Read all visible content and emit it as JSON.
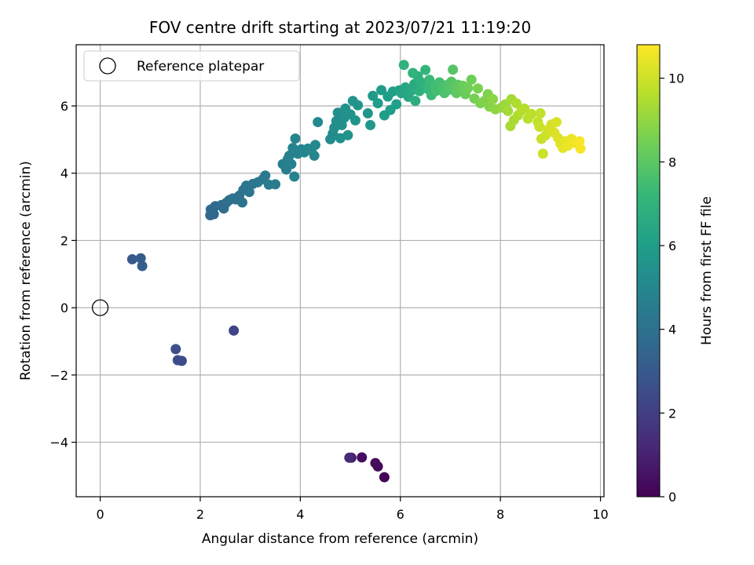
{
  "chart_data": {
    "type": "scatter",
    "title": "FOV centre drift starting at 2023/07/21 11:19:20",
    "xlabel": "Angular distance from reference (arcmin)",
    "ylabel": "Rotation from reference (arcmin)",
    "xlim": [
      -0.48,
      10.07
    ],
    "ylim": [
      -5.62,
      7.82
    ],
    "xticks": [
      0,
      2,
      4,
      6,
      8,
      10
    ],
    "yticks": [
      -4,
      -2,
      0,
      2,
      4,
      6
    ],
    "grid": true,
    "legend": {
      "position": "top-left",
      "entries": [
        "Reference platepar"
      ]
    },
    "reference_point": {
      "x": 0,
      "y": 0
    },
    "colorbar": {
      "label": "Hours from first FF file",
      "colormap": "viridis",
      "range": [
        0,
        10.8
      ],
      "ticks": [
        0,
        2,
        4,
        6,
        8,
        10
      ]
    },
    "colors": {
      "viridis": [
        "#440154",
        "#482878",
        "#3e4a89",
        "#31688e",
        "#26828e",
        "#1f9e89",
        "#35b779",
        "#6ece58",
        "#b5de2b",
        "#fde725"
      ]
    },
    "points": [
      [
        5.68,
        -5.04,
        0.1
      ],
      [
        5.55,
        -4.72,
        0.2
      ],
      [
        5.5,
        -4.62,
        0.3
      ],
      [
        5.23,
        -4.45,
        0.4
      ],
      [
        5.02,
        -4.46,
        0.6
      ],
      [
        4.98,
        -4.46,
        1.3
      ],
      [
        2.67,
        -0.68,
        2.2
      ],
      [
        1.63,
        -1.58,
        2.4
      ],
      [
        1.55,
        -1.56,
        2.5
      ],
      [
        1.51,
        -1.23,
        2.6
      ],
      [
        0.64,
        1.44,
        3.0
      ],
      [
        0.81,
        1.47,
        3.1
      ],
      [
        0.84,
        1.24,
        3.2
      ],
      [
        2.2,
        2.75,
        3.6
      ],
      [
        2.27,
        2.78,
        3.6
      ],
      [
        2.21,
        2.92,
        3.7
      ],
      [
        2.3,
        3.02,
        3.7
      ],
      [
        2.42,
        3.05,
        3.8
      ],
      [
        2.47,
        2.95,
        3.8
      ],
      [
        2.52,
        3.12,
        3.9
      ],
      [
        2.58,
        3.2,
        3.9
      ],
      [
        2.65,
        3.25,
        4.0
      ],
      [
        2.71,
        3.22,
        4.0
      ],
      [
        2.78,
        3.33,
        4.0
      ],
      [
        2.84,
        3.13,
        4.1
      ],
      [
        2.86,
        3.5,
        4.1
      ],
      [
        2.92,
        3.63,
        4.2
      ],
      [
        2.98,
        3.44,
        4.2
      ],
      [
        3.05,
        3.68,
        4.3
      ],
      [
        3.15,
        3.73,
        4.3
      ],
      [
        3.25,
        3.82,
        4.4
      ],
      [
        3.3,
        3.93,
        4.4
      ],
      [
        3.37,
        3.66,
        4.5
      ],
      [
        3.5,
        3.67,
        4.5
      ],
      [
        3.65,
        4.27,
        4.6
      ],
      [
        3.72,
        4.11,
        4.6
      ],
      [
        3.75,
        4.42,
        4.7
      ],
      [
        3.78,
        4.52,
        4.7
      ],
      [
        3.82,
        4.27,
        4.7
      ],
      [
        3.85,
        4.75,
        4.8
      ],
      [
        3.88,
        3.9,
        4.8
      ],
      [
        3.95,
        4.58,
        4.8
      ],
      [
        3.9,
        5.03,
        4.9
      ],
      [
        4.02,
        4.71,
        4.9
      ],
      [
        4.08,
        4.62,
        4.9
      ],
      [
        4.15,
        4.73,
        5.0
      ],
      [
        4.22,
        4.68,
        5.0
      ],
      [
        4.28,
        4.52,
        5.0
      ],
      [
        4.3,
        4.84,
        5.1
      ],
      [
        4.35,
        5.52,
        5.1
      ],
      [
        4.6,
        5.01,
        5.2
      ],
      [
        4.65,
        5.18,
        5.2
      ],
      [
        4.68,
        5.35,
        5.3
      ],
      [
        4.72,
        5.55,
        5.3
      ],
      [
        4.75,
        5.8,
        5.3
      ],
      [
        4.8,
        5.04,
        5.4
      ],
      [
        4.83,
        5.43,
        5.4
      ],
      [
        4.88,
        5.65,
        5.4
      ],
      [
        4.9,
        5.92,
        5.5
      ],
      [
        4.95,
        5.13,
        5.5
      ],
      [
        5.0,
        5.75,
        5.5
      ],
      [
        5.05,
        6.15,
        5.6
      ],
      [
        5.1,
        5.57,
        5.6
      ],
      [
        5.15,
        6.02,
        5.6
      ],
      [
        5.35,
        5.78,
        5.7
      ],
      [
        5.4,
        5.43,
        5.8
      ],
      [
        5.45,
        6.3,
        5.8
      ],
      [
        5.55,
        6.08,
        5.9
      ],
      [
        5.62,
        6.47,
        5.9
      ],
      [
        5.68,
        5.72,
        6.0
      ],
      [
        5.75,
        6.28,
        6.0
      ],
      [
        5.8,
        5.88,
        6.0
      ],
      [
        5.85,
        6.43,
        6.1
      ],
      [
        5.92,
        6.05,
        6.1
      ],
      [
        5.97,
        6.46,
        6.2
      ],
      [
        6.02,
        6.38,
        6.3
      ],
      [
        6.1,
        6.55,
        6.4
      ],
      [
        6.16,
        6.27,
        6.5
      ],
      [
        6.22,
        6.45,
        6.6
      ],
      [
        6.28,
        6.65,
        6.6
      ],
      [
        6.3,
        6.15,
        6.7
      ],
      [
        6.35,
        6.88,
        6.8
      ],
      [
        6.38,
        6.44,
        6.8
      ],
      [
        6.42,
        6.7,
        6.9
      ],
      [
        6.07,
        7.22,
        6.9
      ],
      [
        6.25,
        6.98,
        7.0
      ],
      [
        6.5,
        7.07,
        7.1
      ],
      [
        6.55,
        6.5,
        7.2
      ],
      [
        6.58,
        6.78,
        7.3
      ],
      [
        6.62,
        6.32,
        7.3
      ],
      [
        6.68,
        6.6,
        7.4
      ],
      [
        6.72,
        6.45,
        7.5
      ],
      [
        6.78,
        6.7,
        7.5
      ],
      [
        6.83,
        6.55,
        7.6
      ],
      [
        6.88,
        6.38,
        7.7
      ],
      [
        6.93,
        6.62,
        7.7
      ],
      [
        6.97,
        6.48,
        7.8
      ],
      [
        7.02,
        6.72,
        7.9
      ],
      [
        7.05,
        7.08,
        7.9
      ],
      [
        7.08,
        6.55,
        8.0
      ],
      [
        7.12,
        6.38,
        8.1
      ],
      [
        7.15,
        6.63,
        8.1
      ],
      [
        7.2,
        6.48,
        8.2
      ],
      [
        7.25,
        6.6,
        8.3
      ],
      [
        7.3,
        6.35,
        8.3
      ],
      [
        7.35,
        6.53,
        8.4
      ],
      [
        7.42,
        6.78,
        8.4
      ],
      [
        7.48,
        6.22,
        8.5
      ],
      [
        7.55,
        6.52,
        8.6
      ],
      [
        7.6,
        6.08,
        8.6
      ],
      [
        7.68,
        6.15,
        8.7
      ],
      [
        7.75,
        6.35,
        8.7
      ],
      [
        7.78,
        5.98,
        8.8
      ],
      [
        7.85,
        6.2,
        8.9
      ],
      [
        7.9,
        5.9,
        8.9
      ],
      [
        8.02,
        5.95,
        9.1
      ],
      [
        8.1,
        6.05,
        9.2
      ],
      [
        8.15,
        5.85,
        9.3
      ],
      [
        8.22,
        6.2,
        9.3
      ],
      [
        8.2,
        5.4,
        9.4
      ],
      [
        8.27,
        5.58,
        9.4
      ],
      [
        8.32,
        6.08,
        9.5
      ],
      [
        8.35,
        5.72,
        9.5
      ],
      [
        8.42,
        5.86,
        9.6
      ],
      [
        8.48,
        5.92,
        9.6
      ],
      [
        8.55,
        5.62,
        9.7
      ],
      [
        8.62,
        5.76,
        9.7
      ],
      [
        8.75,
        5.52,
        9.8
      ],
      [
        8.8,
        5.78,
        9.8
      ],
      [
        8.78,
        5.38,
        9.9
      ],
      [
        8.82,
        5.02,
        9.9
      ],
      [
        8.85,
        4.58,
        10.0
      ],
      [
        8.9,
        5.12,
        10.0
      ],
      [
        8.95,
        5.3,
        10.1
      ],
      [
        9.02,
        5.45,
        10.1
      ],
      [
        9.08,
        5.2,
        10.2
      ],
      [
        9.12,
        5.52,
        10.2
      ],
      [
        9.15,
        5.05,
        10.3
      ],
      [
        9.2,
        4.88,
        10.3
      ],
      [
        9.25,
        4.75,
        10.4
      ],
      [
        9.3,
        4.95,
        10.4
      ],
      [
        9.35,
        4.82,
        10.5
      ],
      [
        9.42,
        5.02,
        10.5
      ],
      [
        9.5,
        4.9,
        10.6
      ],
      [
        9.58,
        4.95,
        10.7
      ],
      [
        9.6,
        4.73,
        10.7
      ]
    ]
  }
}
